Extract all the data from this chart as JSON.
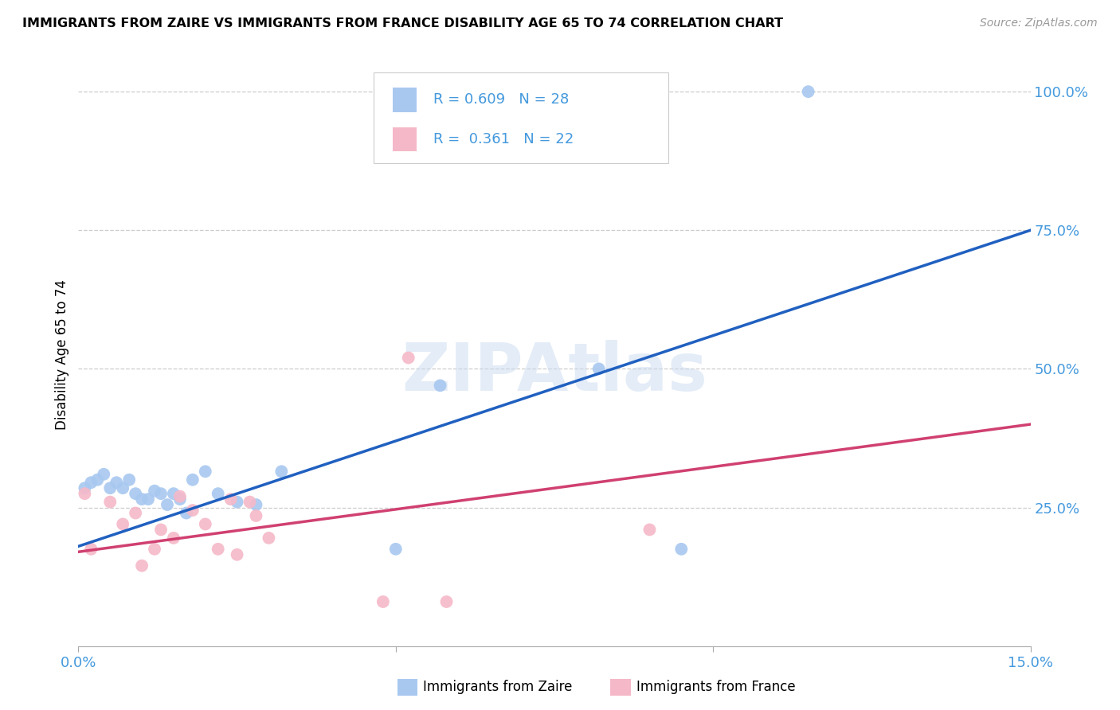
{
  "title": "IMMIGRANTS FROM ZAIRE VS IMMIGRANTS FROM FRANCE DISABILITY AGE 65 TO 74 CORRELATION CHART",
  "source": "Source: ZipAtlas.com",
  "ylabel": "Disability Age 65 to 74",
  "xlim": [
    0.0,
    0.15
  ],
  "ylim": [
    0.0,
    1.05
  ],
  "R_zaire": 0.609,
  "N_zaire": 28,
  "R_france": 0.361,
  "N_france": 22,
  "zaire_color": "#a8c8f0",
  "france_color": "#f5b8c8",
  "zaire_line_color": "#2060c0",
  "france_line_color": "#d04070",
  "watermark": "ZIPAtlas",
  "zaire_x": [
    0.001,
    0.002,
    0.003,
    0.004,
    0.005,
    0.006,
    0.007,
    0.008,
    0.009,
    0.01,
    0.011,
    0.012,
    0.013,
    0.014,
    0.015,
    0.016,
    0.017,
    0.018,
    0.02,
    0.022,
    0.025,
    0.028,
    0.032,
    0.05,
    0.057,
    0.082,
    0.095,
    0.115
  ],
  "zaire_y": [
    0.285,
    0.295,
    0.3,
    0.31,
    0.285,
    0.295,
    0.285,
    0.3,
    0.275,
    0.265,
    0.265,
    0.28,
    0.275,
    0.255,
    0.275,
    0.265,
    0.24,
    0.3,
    0.315,
    0.275,
    0.26,
    0.255,
    0.315,
    0.175,
    0.47,
    0.5,
    0.175,
    1.0
  ],
  "france_x": [
    0.001,
    0.002,
    0.005,
    0.007,
    0.009,
    0.01,
    0.012,
    0.013,
    0.015,
    0.016,
    0.018,
    0.02,
    0.022,
    0.024,
    0.025,
    0.027,
    0.028,
    0.03,
    0.048,
    0.052,
    0.058,
    0.09
  ],
  "france_y": [
    0.275,
    0.175,
    0.26,
    0.22,
    0.24,
    0.145,
    0.175,
    0.21,
    0.195,
    0.27,
    0.245,
    0.22,
    0.175,
    0.265,
    0.165,
    0.26,
    0.235,
    0.195,
    0.08,
    0.52,
    0.08,
    0.21
  ],
  "zaire_line_x": [
    0.0,
    0.15
  ],
  "zaire_line_y": [
    0.18,
    0.75
  ],
  "france_line_x": [
    0.0,
    0.15
  ],
  "france_line_y": [
    0.17,
    0.4
  ]
}
